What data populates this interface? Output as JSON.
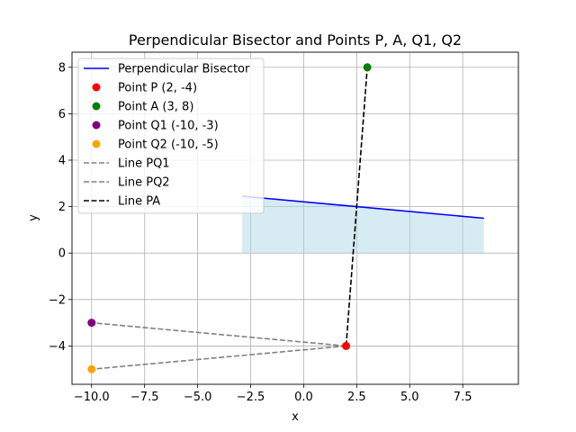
{
  "chart_data": {
    "type": "scatter",
    "title": "Perpendicular Bisector and Points P, A, Q1, Q2",
    "xlabel": "x",
    "ylabel": "y",
    "xlim": [
      -10.925,
      10.125
    ],
    "ylim": [
      -5.65,
      8.65
    ],
    "xticks": [
      -10.0,
      -7.5,
      -5.0,
      -2.5,
      0.0,
      2.5,
      5.0,
      7.5
    ],
    "xtick_labels": [
      "−10.0",
      "−7.5",
      "−5.0",
      "−2.5",
      "0.0",
      "2.5",
      "5.0",
      "7.5"
    ],
    "yticks": [
      -4,
      -2,
      0,
      2,
      4,
      6,
      8
    ],
    "ytick_labels": [
      "−4",
      "−2",
      "0",
      "2",
      "4",
      "6",
      "8"
    ],
    "grid": true,
    "legend_position": "upper-left",
    "shaded_region": {
      "color": "#add8e6",
      "x": [
        -2.9,
        8.5
      ],
      "y_upper": [
        2.45,
        1.5
      ],
      "y_lower": [
        0,
        0
      ]
    },
    "lines": [
      {
        "name": "Perpendicular Bisector",
        "color": "#0000ff",
        "style": "solid",
        "x": [
          -2.9,
          8.5
        ],
        "y": [
          2.45,
          1.5
        ]
      },
      {
        "name": "Line PQ1",
        "color": "#808080",
        "style": "dashed",
        "x": [
          2,
          -10
        ],
        "y": [
          -4,
          -3
        ]
      },
      {
        "name": "Line PQ2",
        "color": "#808080",
        "style": "dashed",
        "x": [
          2,
          -10
        ],
        "y": [
          -4,
          -5
        ]
      },
      {
        "name": "Line PA",
        "color": "#000000",
        "style": "dashed",
        "x": [
          2,
          3
        ],
        "y": [
          -4,
          8
        ]
      }
    ],
    "points": [
      {
        "name": "Point P (2, -4)",
        "color": "#ff0000",
        "x": 2,
        "y": -4
      },
      {
        "name": "Point A (3, 8)",
        "color": "#008000",
        "x": 3,
        "y": 8
      },
      {
        "name": "Point Q1 (-10, -3)",
        "color": "#800080",
        "x": -10,
        "y": -3
      },
      {
        "name": "Point Q2 (-10, -5)",
        "color": "#ffa500",
        "x": -10,
        "y": -5
      }
    ],
    "legend_order": [
      {
        "kind": "line",
        "ref": 0
      },
      {
        "kind": "point",
        "ref": 0
      },
      {
        "kind": "point",
        "ref": 1
      },
      {
        "kind": "point",
        "ref": 2
      },
      {
        "kind": "point",
        "ref": 3
      },
      {
        "kind": "line",
        "ref": 1
      },
      {
        "kind": "line",
        "ref": 2
      },
      {
        "kind": "line",
        "ref": 3
      }
    ]
  }
}
